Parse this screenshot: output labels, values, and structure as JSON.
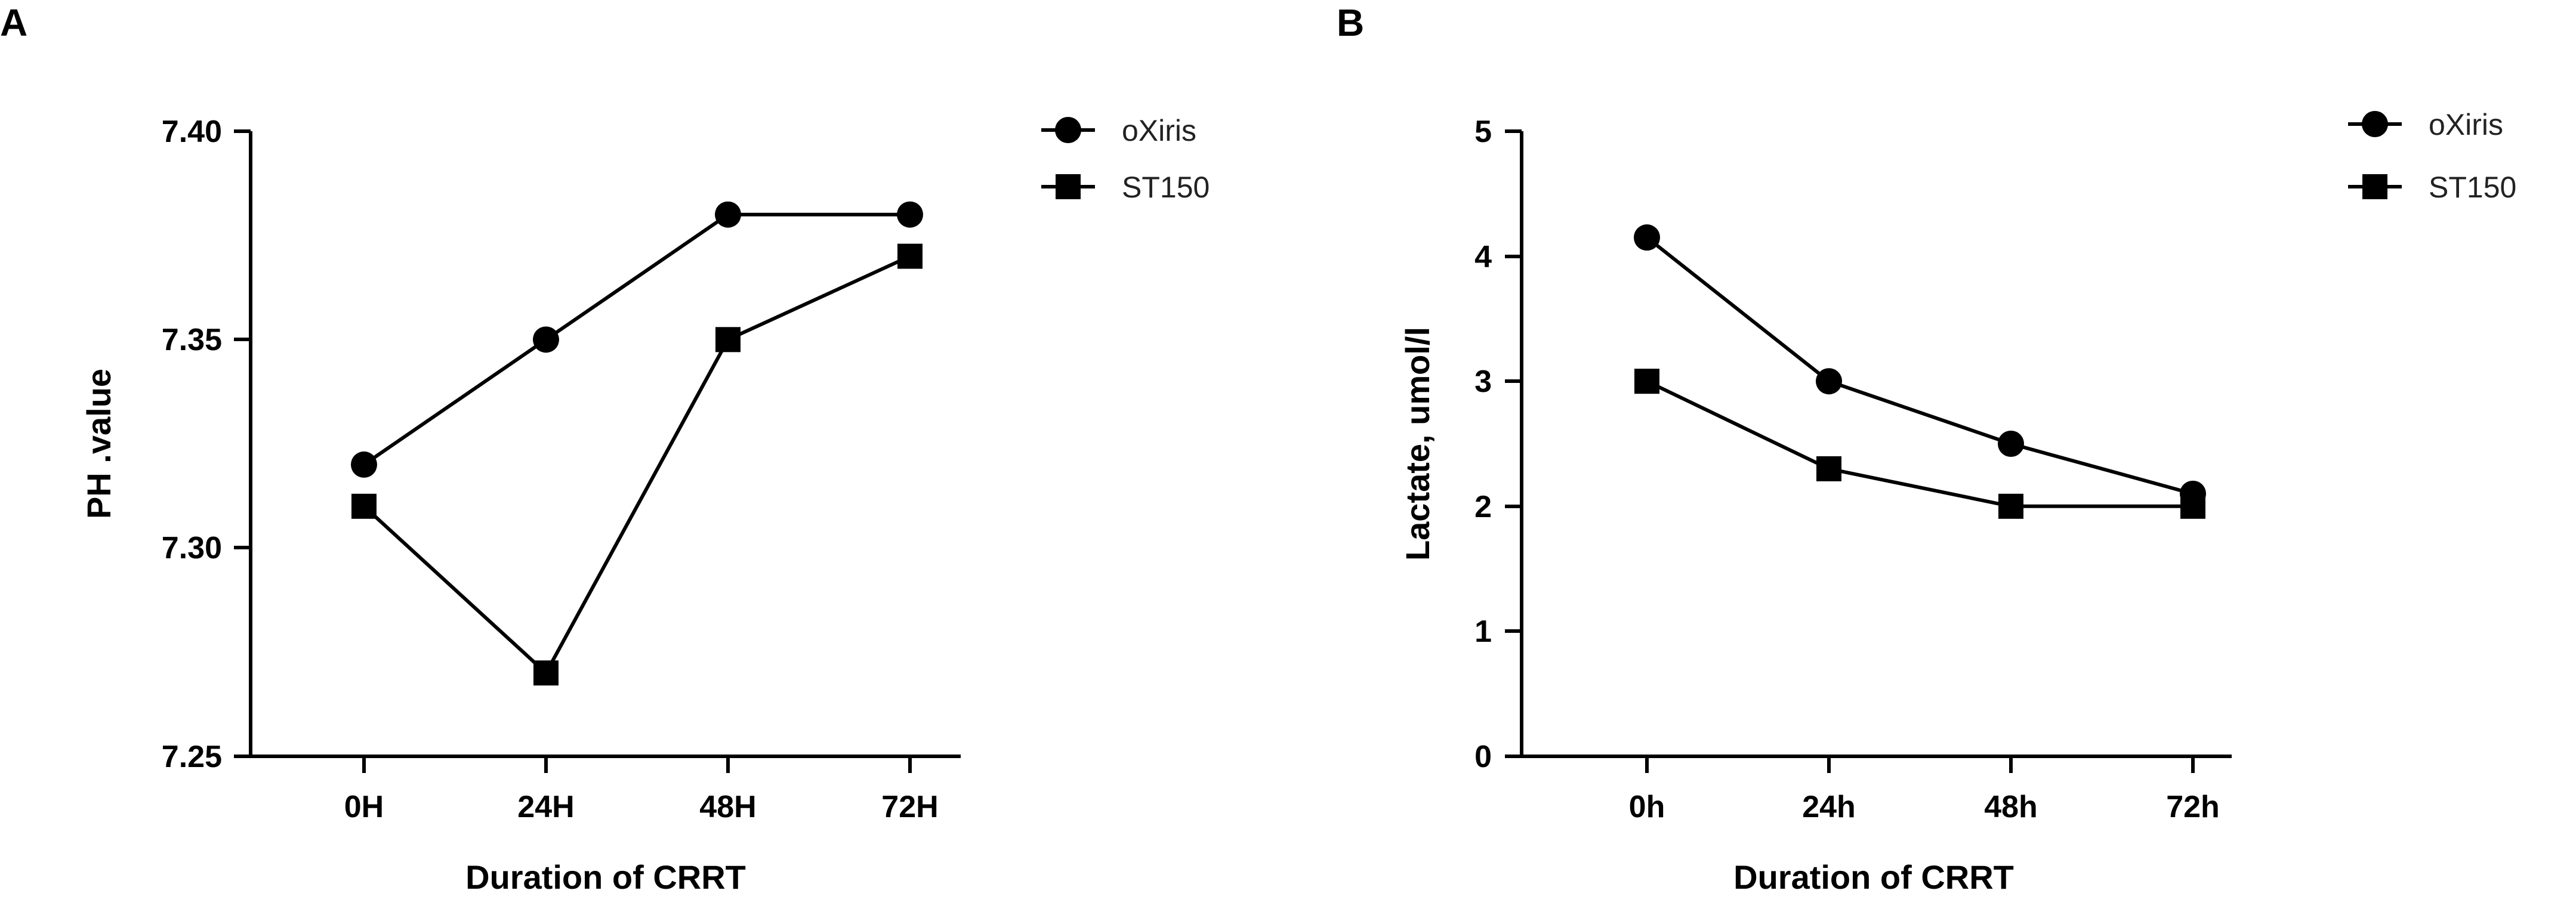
{
  "chart_data": [
    {
      "panel": "A",
      "type": "line",
      "categories": [
        "0H",
        "24H",
        "48H",
        "72H"
      ],
      "xlabel": "Duration of CRRT",
      "ylabel": "PH .value",
      "ylim": [
        7.25,
        7.4
      ],
      "yticks": [
        "7.25",
        "7.30",
        "7.35",
        "7.40"
      ],
      "legend_position": "top-right",
      "series": [
        {
          "name": "oXiris",
          "marker": "circle",
          "values": [
            7.32,
            7.35,
            7.38,
            7.38
          ]
        },
        {
          "name": "ST150",
          "marker": "square",
          "values": [
            7.31,
            7.27,
            7.35,
            7.37
          ]
        }
      ]
    },
    {
      "panel": "B",
      "type": "line",
      "categories": [
        "0h",
        "24h",
        "48h",
        "72h"
      ],
      "xlabel": "Duration of CRRT",
      "ylabel": "Lactate,  umol/l",
      "ylim": [
        0,
        5
      ],
      "yticks": [
        "0",
        "1",
        "2",
        "3",
        "4",
        "5"
      ],
      "legend_position": "top-right",
      "series": [
        {
          "name": "oXiris",
          "marker": "circle",
          "values": [
            4.15,
            3.0,
            2.5,
            2.1
          ]
        },
        {
          "name": "ST150",
          "marker": "square",
          "values": [
            3.0,
            2.3,
            2.0,
            2.0
          ]
        }
      ]
    }
  ]
}
